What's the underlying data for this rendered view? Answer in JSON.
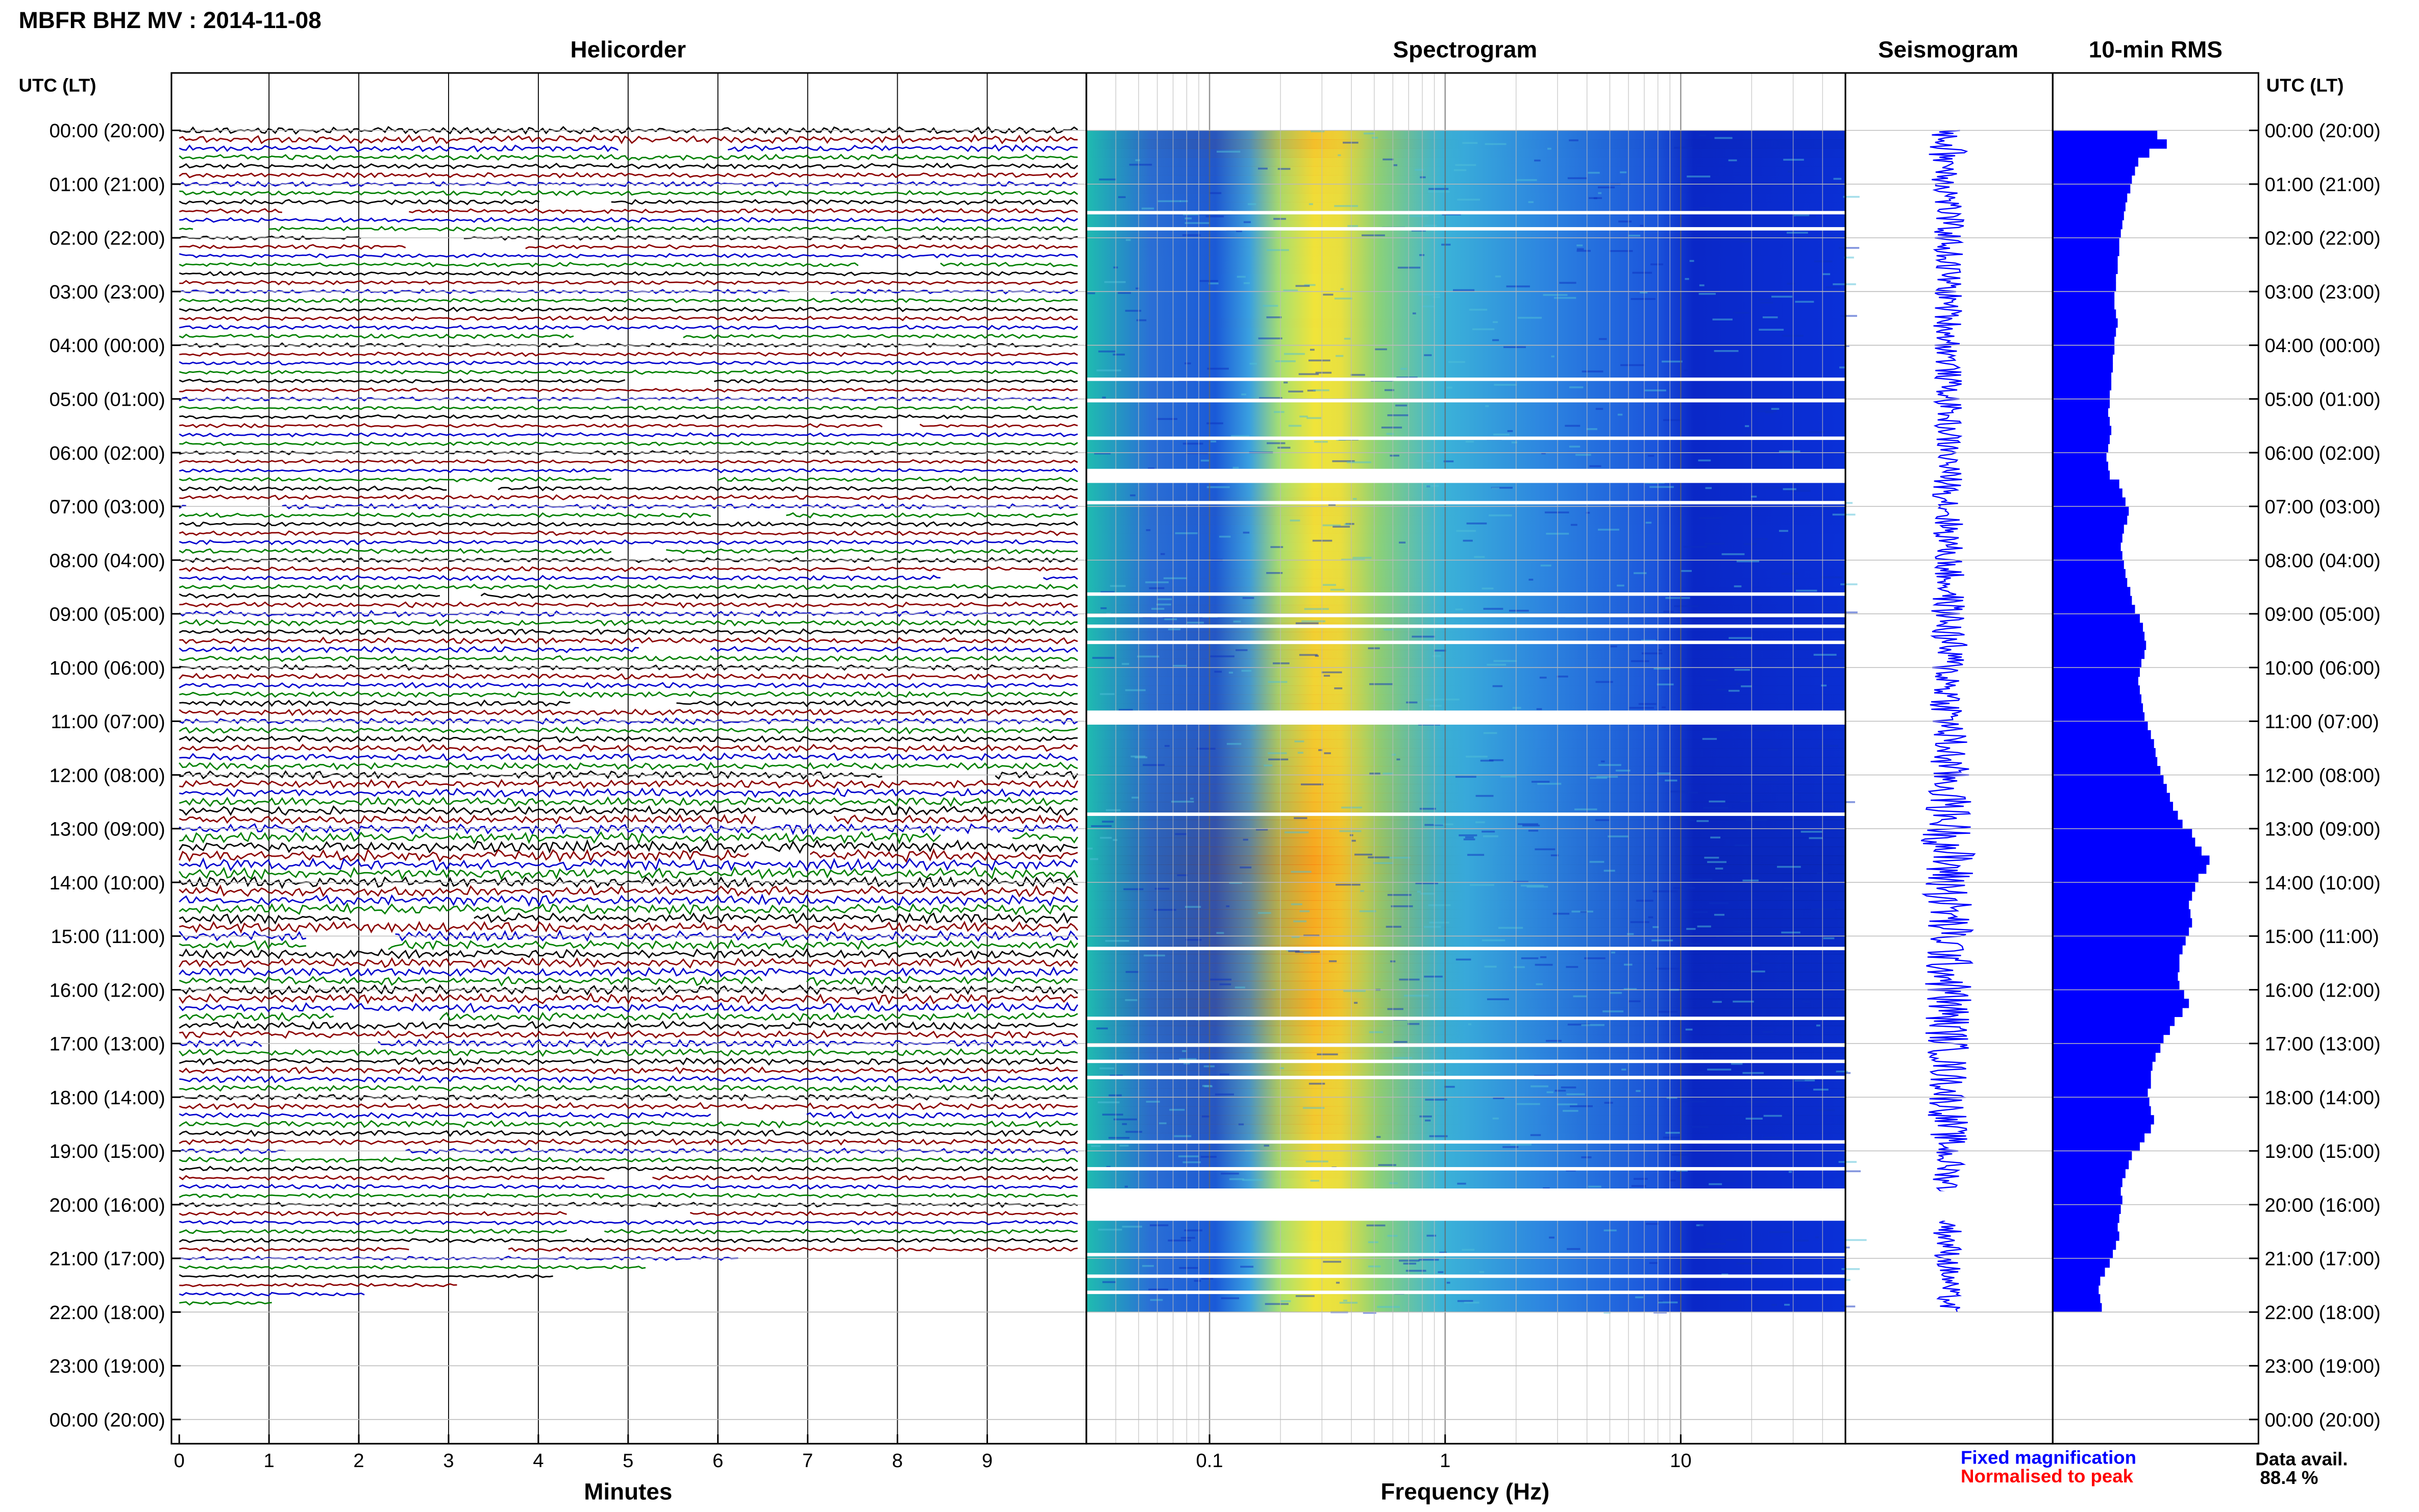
{
  "header": {
    "title": "MBFR BHZ MV : 2014-11-08"
  },
  "panels": {
    "helicorder": "Helicorder",
    "spectrogram": "Spectrogram",
    "seismogram": "Seismogram",
    "rms": "10-min RMS"
  },
  "axes": {
    "time_axis_label_left": "UTC (LT)",
    "time_axis_label_right": "UTC (LT)",
    "helicorder_xlabel": "Minutes",
    "spectrogram_xlabel": "Frequency (Hz)"
  },
  "legend": {
    "fixed": "Fixed magnification",
    "fixed_color": "#0000ff",
    "normalised": "Normalised to peak",
    "normalised_color": "#ff0000",
    "availability_label": "Data avail.",
    "availability_value": "88.4 %"
  },
  "colors": {
    "trace_cycle": [
      "#000000",
      "#8b0000",
      "#0000cd",
      "#008000"
    ],
    "seismogram": "#0000ff",
    "rms_fill": "#0000ff"
  },
  "chart_data": {
    "type": "heatmap",
    "time_ticks": [
      "00:00 (20:00)",
      "01:00 (21:00)",
      "02:00 (22:00)",
      "03:00 (23:00)",
      "04:00 (00:00)",
      "05:00 (01:00)",
      "06:00 (02:00)",
      "07:00 (03:00)",
      "08:00 (04:00)",
      "09:00 (05:00)",
      "10:00 (06:00)",
      "11:00 (07:00)",
      "12:00 (08:00)",
      "13:00 (09:00)",
      "14:00 (10:00)",
      "15:00 (11:00)",
      "16:00 (12:00)",
      "17:00 (13:00)",
      "18:00 (14:00)",
      "19:00 (15:00)",
      "20:00 (16:00)",
      "21:00 (17:00)",
      "22:00 (18:00)",
      "23:00 (19:00)",
      "00:00 (20:00)"
    ],
    "data_end_hour": 22,
    "helicorder": {
      "xlim": [
        0,
        10
      ],
      "x_ticks": [
        "0",
        "1",
        "2",
        "3",
        "4",
        "5",
        "6",
        "7",
        "8",
        "9"
      ],
      "rows_per_hour": 6
    },
    "spectrogram": {
      "scale": "log",
      "xlim": [
        0.03,
        50
      ],
      "x_ticks": [
        "0.1",
        "1",
        "10"
      ],
      "peak_band_hz": [
        0.2,
        0.4
      ]
    },
    "gaps_hours": [
      1.5,
      1.8,
      4.6,
      5.0,
      5.7,
      6.3,
      6.5,
      6.9,
      8.6,
      9.0,
      9.2,
      9.5,
      10.8,
      11.0,
      12.7,
      15.2,
      16.5,
      17.0,
      17.3,
      17.6,
      18.8,
      19.3,
      19.7,
      20.9,
      21.3,
      21.6
    ],
    "rms_10min": [
      0.66,
      0.72,
      0.61,
      0.54,
      0.52,
      0.5,
      0.49,
      0.47,
      0.46,
      0.45,
      0.44,
      0.43,
      0.42,
      0.42,
      0.41,
      0.41,
      0.4,
      0.4,
      0.39,
      0.39,
      0.4,
      0.41,
      0.4,
      0.39,
      0.39,
      0.38,
      0.38,
      0.37,
      0.37,
      0.36,
      0.36,
      0.35,
      0.36,
      0.37,
      0.36,
      0.35,
      0.34,
      0.35,
      0.36,
      0.42,
      0.44,
      0.46,
      0.48,
      0.47,
      0.45,
      0.44,
      0.43,
      0.44,
      0.45,
      0.46,
      0.47,
      0.49,
      0.5,
      0.52,
      0.55,
      0.57,
      0.58,
      0.59,
      0.58,
      0.56,
      0.55,
      0.54,
      0.55,
      0.56,
      0.57,
      0.58,
      0.6,
      0.62,
      0.64,
      0.65,
      0.66,
      0.68,
      0.7,
      0.72,
      0.74,
      0.76,
      0.79,
      0.82,
      0.88,
      0.9,
      0.94,
      0.99,
      0.97,
      0.92,
      0.9,
      0.88,
      0.86,
      0.87,
      0.88,
      0.86,
      0.84,
      0.82,
      0.8,
      0.8,
      0.79,
      0.8,
      0.83,
      0.86,
      0.82,
      0.77,
      0.74,
      0.7,
      0.68,
      0.65,
      0.63,
      0.62,
      0.62,
      0.6,
      0.61,
      0.62,
      0.64,
      0.62,
      0.58,
      0.55,
      0.5,
      0.48,
      0.46,
      0.44,
      0.43,
      0.44,
      0.43,
      0.42,
      0.41,
      0.42,
      0.4,
      0.38,
      0.36,
      0.33,
      0.3,
      0.29,
      0.3,
      0.31
    ]
  }
}
